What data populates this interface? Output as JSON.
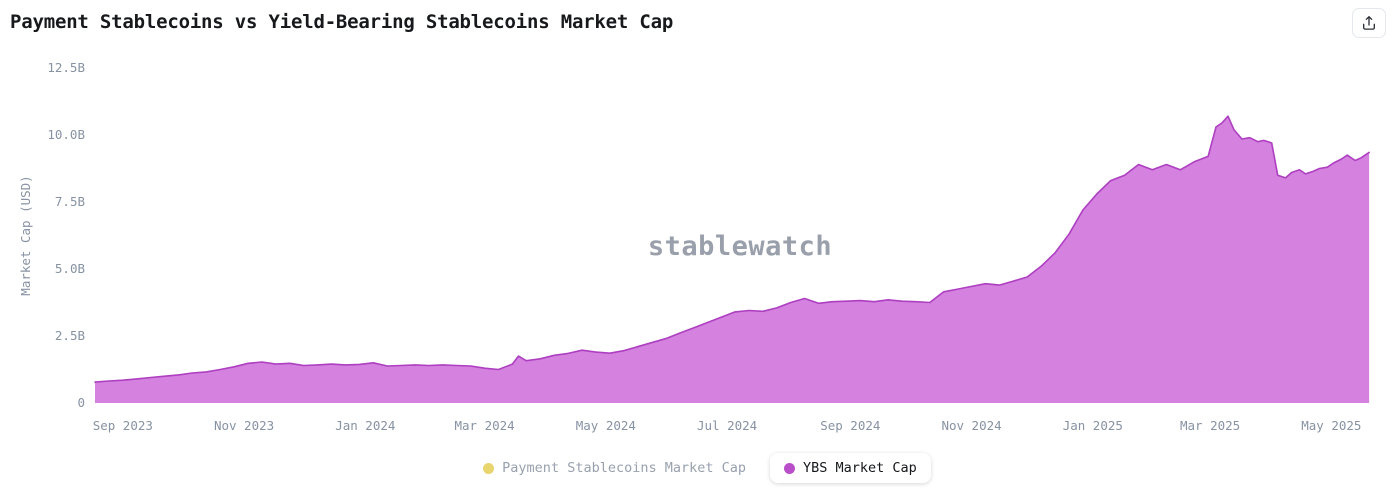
{
  "header": {
    "title": "Payment Stablecoins vs Yield-Bearing Stablecoins Market Cap",
    "share_icon": "share-export"
  },
  "watermark": "stablewatch",
  "legend": {
    "items": [
      {
        "label": "Payment Stablecoins Market Cap",
        "color": "#e9d56d",
        "active": false
      },
      {
        "label": "YBS Market Cap",
        "color": "#b84fc8",
        "active": true
      }
    ]
  },
  "chart_data": {
    "type": "area",
    "title": "Payment Stablecoins vs Yield-Bearing Stablecoins Market Cap",
    "xlabel": "",
    "ylabel": "Market Cap (USD)",
    "ylim": [
      0,
      12.5
    ],
    "y_unit": "billions USD",
    "grid": false,
    "legend_position": "bottom",
    "y_ticks": [
      {
        "value": 0,
        "label": "0"
      },
      {
        "value": 2.5,
        "label": "2.5B"
      },
      {
        "value": 5,
        "label": "5.0B"
      },
      {
        "value": 7.5,
        "label": "7.5B"
      },
      {
        "value": 10,
        "label": "10.0B"
      },
      {
        "value": 12.5,
        "label": "12.5B"
      }
    ],
    "x_ticks": [
      {
        "date": "2023-09-01",
        "label": "Sep 2023"
      },
      {
        "date": "2023-11-01",
        "label": "Nov 2023"
      },
      {
        "date": "2024-01-01",
        "label": "Jan 2024"
      },
      {
        "date": "2024-03-01",
        "label": "Mar 2024"
      },
      {
        "date": "2024-05-01",
        "label": "May 2024"
      },
      {
        "date": "2024-07-01",
        "label": "Jul 2024"
      },
      {
        "date": "2024-09-01",
        "label": "Sep 2024"
      },
      {
        "date": "2024-11-01",
        "label": "Nov 2024"
      },
      {
        "date": "2025-01-01",
        "label": "Jan 2025"
      },
      {
        "date": "2025-03-01",
        "label": "Mar 2025"
      },
      {
        "date": "2025-05-01",
        "label": "May 2025"
      }
    ],
    "x_domain": [
      "2023-08-18",
      "2025-05-28"
    ],
    "series": [
      {
        "name": "Payment Stablecoins Market Cap",
        "color": "#e9d56d",
        "visible": false,
        "points": []
      },
      {
        "name": "YBS Market Cap",
        "color": "#ad3fc0",
        "fill": "#d076dc",
        "visible": true,
        "points": [
          [
            "2023-08-18",
            0.78
          ],
          [
            "2023-08-25",
            0.82
          ],
          [
            "2023-09-01",
            0.85
          ],
          [
            "2023-09-08",
            0.9
          ],
          [
            "2023-09-15",
            0.95
          ],
          [
            "2023-09-22",
            1.0
          ],
          [
            "2023-09-29",
            1.05
          ],
          [
            "2023-10-06",
            1.12
          ],
          [
            "2023-10-13",
            1.16
          ],
          [
            "2023-10-20",
            1.25
          ],
          [
            "2023-10-27",
            1.35
          ],
          [
            "2023-11-03",
            1.48
          ],
          [
            "2023-11-10",
            1.53
          ],
          [
            "2023-11-17",
            1.45
          ],
          [
            "2023-11-24",
            1.48
          ],
          [
            "2023-12-01",
            1.4
          ],
          [
            "2023-12-08",
            1.42
          ],
          [
            "2023-12-15",
            1.45
          ],
          [
            "2023-12-22",
            1.42
          ],
          [
            "2023-12-29",
            1.44
          ],
          [
            "2024-01-05",
            1.5
          ],
          [
            "2024-01-12",
            1.38
          ],
          [
            "2024-01-19",
            1.4
          ],
          [
            "2024-01-26",
            1.42
          ],
          [
            "2024-02-02",
            1.4
          ],
          [
            "2024-02-09",
            1.42
          ],
          [
            "2024-02-16",
            1.4
          ],
          [
            "2024-02-23",
            1.38
          ],
          [
            "2024-03-01",
            1.3
          ],
          [
            "2024-03-08",
            1.25
          ],
          [
            "2024-03-15",
            1.45
          ],
          [
            "2024-03-18",
            1.75
          ],
          [
            "2024-03-22",
            1.58
          ],
          [
            "2024-03-29",
            1.65
          ],
          [
            "2024-04-05",
            1.78
          ],
          [
            "2024-04-12",
            1.85
          ],
          [
            "2024-04-19",
            1.97
          ],
          [
            "2024-04-26",
            1.9
          ],
          [
            "2024-05-03",
            1.86
          ],
          [
            "2024-05-10",
            1.95
          ],
          [
            "2024-05-17",
            2.1
          ],
          [
            "2024-05-24",
            2.25
          ],
          [
            "2024-05-31",
            2.4
          ],
          [
            "2024-06-07",
            2.6
          ],
          [
            "2024-06-14",
            2.8
          ],
          [
            "2024-06-21",
            3.0
          ],
          [
            "2024-06-28",
            3.2
          ],
          [
            "2024-07-05",
            3.4
          ],
          [
            "2024-07-12",
            3.45
          ],
          [
            "2024-07-19",
            3.42
          ],
          [
            "2024-07-26",
            3.55
          ],
          [
            "2024-08-02",
            3.75
          ],
          [
            "2024-08-09",
            3.9
          ],
          [
            "2024-08-16",
            3.72
          ],
          [
            "2024-08-23",
            3.78
          ],
          [
            "2024-08-30",
            3.8
          ],
          [
            "2024-09-06",
            3.82
          ],
          [
            "2024-09-13",
            3.78
          ],
          [
            "2024-09-20",
            3.85
          ],
          [
            "2024-09-27",
            3.8
          ],
          [
            "2024-10-04",
            3.78
          ],
          [
            "2024-10-11",
            3.75
          ],
          [
            "2024-10-18",
            4.15
          ],
          [
            "2024-10-25",
            4.25
          ],
          [
            "2024-11-01",
            4.35
          ],
          [
            "2024-11-08",
            4.45
          ],
          [
            "2024-11-15",
            4.4
          ],
          [
            "2024-11-22",
            4.55
          ],
          [
            "2024-11-29",
            4.7
          ],
          [
            "2024-12-06",
            5.1
          ],
          [
            "2024-12-13",
            5.6
          ],
          [
            "2024-12-20",
            6.3
          ],
          [
            "2024-12-27",
            7.2
          ],
          [
            "2025-01-03",
            7.8
          ],
          [
            "2025-01-10",
            8.3
          ],
          [
            "2025-01-17",
            8.5
          ],
          [
            "2025-01-24",
            8.9
          ],
          [
            "2025-01-31",
            8.7
          ],
          [
            "2025-02-07",
            8.9
          ],
          [
            "2025-02-14",
            8.7
          ],
          [
            "2025-02-21",
            9.0
          ],
          [
            "2025-02-28",
            9.2
          ],
          [
            "2025-03-04",
            10.3
          ],
          [
            "2025-03-07",
            10.45
          ],
          [
            "2025-03-10",
            10.7
          ],
          [
            "2025-03-13",
            10.2
          ],
          [
            "2025-03-17",
            9.85
          ],
          [
            "2025-03-21",
            9.9
          ],
          [
            "2025-03-25",
            9.75
          ],
          [
            "2025-03-28",
            9.8
          ],
          [
            "2025-04-01",
            9.7
          ],
          [
            "2025-04-04",
            8.5
          ],
          [
            "2025-04-08",
            8.4
          ],
          [
            "2025-04-11",
            8.6
          ],
          [
            "2025-04-15",
            8.7
          ],
          [
            "2025-04-18",
            8.55
          ],
          [
            "2025-04-22",
            8.65
          ],
          [
            "2025-04-25",
            8.75
          ],
          [
            "2025-04-29",
            8.8
          ],
          [
            "2025-05-02",
            8.95
          ],
          [
            "2025-05-06",
            9.1
          ],
          [
            "2025-05-09",
            9.25
          ],
          [
            "2025-05-13",
            9.05
          ],
          [
            "2025-05-16",
            9.15
          ],
          [
            "2025-05-20",
            9.35
          ]
        ]
      }
    ]
  }
}
